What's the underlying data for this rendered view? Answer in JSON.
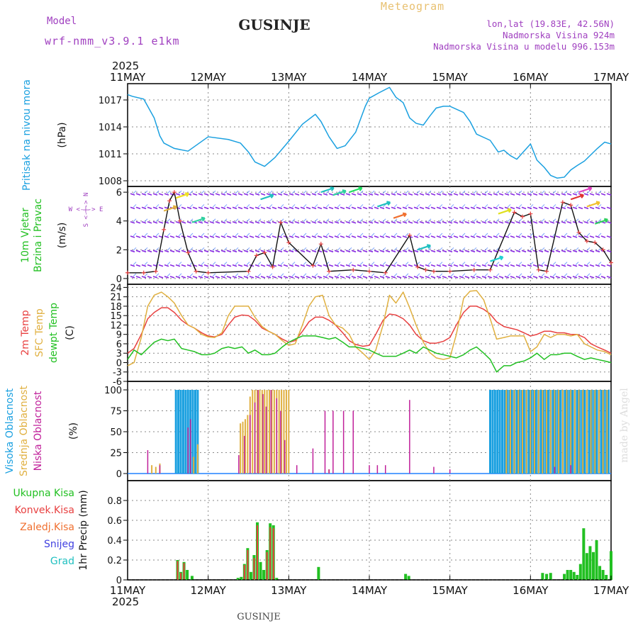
{
  "header": {
    "title": "GUSINJE",
    "model_label": "Model",
    "model_name": "wrf-nmm_v3.9.1 e1km",
    "product": "Meteogram",
    "coords": "lon,lat (19.83E, 42.56N)",
    "elevation": "Nadmorska Visina 924m",
    "model_elevation": "Nadmorska Visina u modelu 996.153m",
    "year_top": "2025",
    "year_bottom": "2025",
    "footer": "GUSINJE",
    "credit": "made by Angel"
  },
  "colors": {
    "pressure": "#1aa0e0",
    "wind_label": "#22c022",
    "temp2m": "#e84040",
    "sfc": "#e0b040",
    "dewpt": "#22c022",
    "high_cloud": "#1aa0e0",
    "mid_cloud": "#e0b040",
    "low_cloud": "#c0209a",
    "total_precip": "#22c022",
    "conv_precip": "#e84040",
    "frozen_precip": "#f07030",
    "snow": "#4040e0",
    "hail": "#20c0c0",
    "title_gold": "#e8c070",
    "purple": "#a040c0"
  },
  "chart_data": [
    {
      "type": "line",
      "panel": "pressure",
      "ylabel_name": "Pritisak na nivou mora",
      "ylabel_unit": "(hPa)",
      "ylim": [
        1008,
        1018.5
      ],
      "yticks": [
        "1008",
        "1011",
        "1014",
        "1017"
      ],
      "x_ticks": [
        "11MAY",
        "12MAY",
        "13MAY",
        "14MAY",
        "15MAY",
        "16MAY",
        "17MAY"
      ],
      "grid": true,
      "x": [
        0,
        0.06,
        0.2,
        0.33,
        0.4,
        0.45,
        0.58,
        0.75,
        1.0,
        1.25,
        1.4,
        1.5,
        1.58,
        1.7,
        1.83,
        2.0,
        2.17,
        2.33,
        2.4,
        2.5,
        2.6,
        2.7,
        2.83,
        2.95,
        3.0,
        3.12,
        3.25,
        3.33,
        3.42,
        3.5,
        3.58,
        3.67,
        3.75,
        3.83,
        3.92,
        4.0,
        4.17,
        4.25,
        4.33,
        4.5,
        4.6,
        4.67,
        4.75,
        4.83,
        5.0,
        5.08,
        5.17,
        5.25,
        5.33,
        5.42,
        5.5,
        5.58,
        5.67,
        5.75,
        5.83,
        5.92,
        6.0
      ],
      "values": [
        1017.6,
        1017.4,
        1017.1,
        1015,
        1013,
        1012.2,
        1011.6,
        1011.3,
        1012.9,
        1012.6,
        1012.2,
        1011.2,
        1010.1,
        1009.6,
        1010.6,
        1012.4,
        1014.3,
        1015.4,
        1014.6,
        1012.9,
        1011.6,
        1011.9,
        1013.4,
        1016.3,
        1017.2,
        1017.8,
        1018.4,
        1017.3,
        1016.7,
        1015.0,
        1014.4,
        1014.2,
        1015.2,
        1016.1,
        1016.3,
        1016.3,
        1015.6,
        1014.6,
        1013.2,
        1012.5,
        1011.2,
        1011.4,
        1010.8,
        1010.4,
        1012.1,
        1010.3,
        1009.5,
        1008.6,
        1008.3,
        1008.4,
        1009.2,
        1009.7,
        1010.2,
        1010.9,
        1011.6,
        1012.3,
        1012.1
      ]
    },
    {
      "type": "line",
      "panel": "wind",
      "ylabel_name": [
        "10m Vjetar",
        "Brzina i Pravac"
      ],
      "ylabel_unit": "(m/s)",
      "legend_ew": "W <-|-> E",
      "legend_ns": "S <-|-> N",
      "ylim": [
        -0.4,
        6.4
      ],
      "yticks": [
        "0",
        "2",
        "4",
        "6"
      ],
      "grid": true,
      "x": [
        0,
        0.2,
        0.35,
        0.45,
        0.52,
        0.58,
        0.65,
        0.75,
        0.85,
        1.0,
        1.5,
        1.6,
        1.7,
        1.8,
        1.9,
        2.0,
        2.3,
        2.4,
        2.5,
        2.8,
        3.0,
        3.2,
        3.5,
        3.6,
        3.7,
        3.8,
        4.0,
        4.3,
        4.5,
        4.8,
        4.9,
        5.0,
        5.1,
        5.2,
        5.4,
        5.5,
        5.6,
        5.7,
        5.8,
        5.9,
        6.0
      ],
      "values": [
        0.4,
        0.4,
        0.5,
        3.4,
        5.4,
        6.0,
        4.0,
        1.8,
        0.5,
        0.4,
        0.5,
        1.6,
        1.8,
        0.8,
        3.9,
        2.5,
        0.9,
        2.4,
        0.5,
        0.6,
        0.5,
        0.4,
        3.0,
        0.8,
        0.6,
        0.5,
        0.5,
        0.6,
        0.6,
        4.6,
        4.3,
        4.5,
        0.6,
        0.5,
        5.3,
        5.1,
        3.2,
        2.6,
        2.5,
        2.0,
        1.1
      ]
    },
    {
      "type": "line",
      "panel": "temperature",
      "ylabel_name": [
        "2m Temp",
        "SFC Temp",
        "dewpt Temp"
      ],
      "ylabel_unit": "(C)",
      "ylim": [
        -6,
        25
      ],
      "yticks": [
        "-6",
        "-3",
        "0",
        "3",
        "6",
        "9",
        "12",
        "15",
        "18",
        "21",
        "24"
      ],
      "grid": true,
      "x": [
        0,
        0.08,
        0.17,
        0.25,
        0.33,
        0.42,
        0.5,
        0.58,
        0.67,
        0.75,
        0.83,
        0.92,
        1.0,
        1.08,
        1.17,
        1.25,
        1.33,
        1.42,
        1.5,
        1.58,
        1.67,
        1.75,
        1.83,
        1.92,
        2.0,
        2.08,
        2.17,
        2.25,
        2.33,
        2.42,
        2.5,
        2.58,
        2.67,
        2.75,
        2.83,
        2.92,
        3.0,
        3.08,
        3.17,
        3.25,
        3.33,
        3.42,
        3.5,
        3.58,
        3.67,
        3.75,
        3.83,
        3.92,
        4.0,
        4.08,
        4.17,
        4.25,
        4.33,
        4.42,
        4.5,
        4.58,
        4.67,
        4.75,
        4.83,
        4.92,
        5.0,
        5.08,
        5.17,
        5.25,
        5.33,
        5.42,
        5.5,
        5.58,
        5.67,
        5.75,
        5.83,
        5.92,
        6.0
      ],
      "series": [
        {
          "name": "2m Temp",
          "values": [
            3,
            4.5,
            9,
            14,
            16,
            17.5,
            17.5,
            16,
            13.5,
            12,
            11,
            9.5,
            8.5,
            8.2,
            9,
            12,
            14.5,
            15.2,
            15,
            13.5,
            11,
            10,
            9,
            7.5,
            6.5,
            7,
            10,
            13,
            14.5,
            14.5,
            13.5,
            12,
            9.5,
            7,
            5.8,
            5.2,
            5.5,
            9,
            13.5,
            15.5,
            15.2,
            14,
            12,
            9,
            7,
            6.2,
            6.2,
            6.8,
            8,
            12,
            16,
            18,
            18,
            17,
            15.5,
            13,
            11.5,
            11,
            10.5,
            9.5,
            8.5,
            9,
            10,
            10,
            9.5,
            9.5,
            9,
            9,
            8,
            6,
            5,
            4,
            3
          ]
        },
        {
          "name": "SFC Temp",
          "values": [
            -1,
            0,
            8,
            18,
            21.5,
            22.5,
            21,
            19,
            15,
            12,
            11,
            9,
            8.2,
            8,
            9.5,
            15,
            18,
            18,
            18,
            14.5,
            11.5,
            10,
            9,
            7,
            5.5,
            6,
            12,
            18,
            21,
            21.5,
            15,
            12,
            11,
            9,
            5,
            3,
            1,
            4,
            12,
            21.5,
            19,
            22.5,
            17.5,
            12,
            6.5,
            3.2,
            1.5,
            1,
            1.5,
            9,
            20.5,
            22.8,
            23,
            20,
            14,
            7.5,
            8,
            8.5,
            8.5,
            8.5,
            3.5,
            5,
            9,
            8,
            9,
            9,
            8.5,
            9,
            6,
            5,
            4,
            3.5,
            2.5
          ]
        },
        {
          "name": "dewpt Temp",
          "values": [
            1,
            4,
            2.5,
            4.5,
            6.5,
            7.5,
            7,
            7.5,
            4.5,
            4,
            3.5,
            2.5,
            2.5,
            3,
            4.5,
            5,
            4.5,
            5,
            3,
            4,
            2.5,
            2.5,
            3,
            5,
            6.5,
            7.5,
            8.5,
            8.5,
            8.5,
            8,
            7.5,
            8,
            6.5,
            5,
            5,
            4.5,
            4,
            3,
            2,
            2,
            2,
            3,
            4,
            3,
            5,
            4,
            3,
            2.5,
            2,
            1.5,
            2.5,
            4,
            5,
            3,
            1,
            -3,
            -1,
            -1,
            0,
            0.5,
            1.5,
            3,
            1,
            2.5,
            2.5,
            3,
            3,
            2,
            1,
            1.5,
            1,
            0.5,
            0
          ]
        }
      ]
    },
    {
      "type": "bar",
      "panel": "clouds",
      "ylabel_name": [
        "Visoka Oblacnost",
        "Srednja Oblacnost",
        "Niska Oblacnost"
      ],
      "ylabel_unit": "(%)",
      "ylim": [
        0,
        100
      ],
      "yticks": [
        "0",
        "25",
        "50",
        "75",
        "100"
      ],
      "grid": true,
      "series": [
        {
          "name": "Visoka Oblacnost",
          "x": [
            0.6,
            0.63,
            0.66,
            0.69,
            0.72,
            0.75,
            0.78,
            0.81,
            0.84,
            0.87,
            4.5,
            4.53,
            4.56,
            4.59,
            4.62,
            4.65,
            4.68,
            4.71,
            4.74,
            4.77,
            4.8,
            4.83,
            4.86,
            4.89,
            4.92,
            4.95,
            4.98,
            5.01,
            5.04,
            5.07,
            5.1,
            5.13,
            5.16,
            5.19,
            5.22,
            5.25,
            5.28,
            5.31,
            5.34,
            5.37,
            5.4,
            5.43,
            5.46,
            5.49,
            5.52,
            5.55,
            5.58,
            5.61,
            5.64,
            5.67,
            5.7,
            5.73,
            5.76,
            5.79,
            5.82,
            5.85,
            5.88,
            5.91,
            5.94,
            5.97
          ],
          "values": [
            100,
            100,
            100,
            100,
            100,
            100,
            100,
            100,
            100,
            100,
            100,
            100,
            100,
            100,
            100,
            100,
            100,
            100,
            100,
            100,
            100,
            100,
            100,
            100,
            100,
            100,
            100,
            100,
            100,
            100,
            100,
            100,
            100,
            100,
            100,
            100,
            100,
            100,
            100,
            100,
            100,
            100,
            100,
            100,
            100,
            100,
            100,
            100,
            100,
            100,
            100,
            100,
            100,
            100,
            100,
            100,
            100,
            100,
            100,
            100
          ]
        },
        {
          "name": "Srednja Oblacnost",
          "x": [
            0.3,
            0.35,
            0.4,
            0.82,
            0.87,
            1.4,
            1.43,
            1.46,
            1.49,
            1.52,
            1.55,
            1.58,
            1.61,
            1.64,
            1.67,
            1.7,
            1.73,
            1.76,
            1.79,
            1.82,
            1.85,
            1.88,
            1.91,
            1.94,
            1.97,
            2.0,
            2.5,
            4.7,
            4.75,
            4.8,
            4.85,
            4.9,
            4.95,
            5.0,
            5.05,
            5.1,
            5.15,
            5.2,
            5.25,
            5.3,
            5.35,
            5.4,
            5.45,
            5.5,
            5.55,
            5.6,
            5.65,
            5.7,
            5.75,
            5.8,
            5.85,
            5.9,
            5.95
          ],
          "values": [
            10,
            8,
            12,
            20,
            35,
            60,
            62,
            65,
            70,
            92,
            100,
            100,
            100,
            100,
            100,
            100,
            100,
            100,
            100,
            100,
            100,
            100,
            100,
            100,
            100,
            100,
            5,
            100,
            100,
            100,
            100,
            100,
            100,
            100,
            100,
            100,
            100,
            100,
            100,
            100,
            100,
            100,
            100,
            100,
            100,
            100,
            100,
            100,
            100,
            100,
            100,
            100,
            100
          ]
        },
        {
          "name": "Niska Oblacnost",
          "x": [
            0.25,
            0.4,
            0.75,
            0.78,
            1.38,
            1.45,
            1.52,
            1.58,
            1.62,
            1.68,
            1.72,
            1.78,
            1.85,
            1.9,
            1.95,
            2.1,
            2.3,
            2.45,
            2.5,
            2.55,
            2.68,
            2.8,
            3.0,
            3.1,
            3.2,
            3.5,
            3.8,
            4.0,
            5.3,
            5.5
          ],
          "values": [
            28,
            10,
            55,
            65,
            22,
            45,
            70,
            85,
            100,
            95,
            80,
            100,
            90,
            75,
            40,
            10,
            30,
            75,
            5,
            75,
            75,
            75,
            10,
            10,
            10,
            88,
            8,
            5,
            8,
            10
          ]
        }
      ]
    },
    {
      "type": "bar",
      "panel": "precipitation",
      "ylabel_name": "1hr Precip",
      "ylabel_unit": "(mm)",
      "legend": [
        "Ukupna Kisa",
        "Konvek.Kisa",
        "Zaledj.Kisa",
        "Snijeg",
        "Grad"
      ],
      "ylim": [
        0,
        1
      ],
      "yticks": [
        "0",
        "0.2",
        "0.4",
        "0.6",
        "0.8"
      ],
      "grid": true,
      "series": [
        {
          "name": "Ukupna Kisa",
          "x": [
            0.62,
            0.66,
            0.7,
            0.74,
            0.8,
            1.37,
            1.41,
            1.45,
            1.49,
            1.53,
            1.57,
            1.61,
            1.65,
            1.69,
            1.73,
            1.77,
            1.81,
            1.85,
            2.37,
            3.45,
            3.49,
            5.15,
            5.2,
            5.25,
            5.42,
            5.46,
            5.5,
            5.54,
            5.58,
            5.62,
            5.66,
            5.7,
            5.74,
            5.78,
            5.82,
            5.86,
            5.9,
            5.94,
            6.0
          ],
          "values": [
            0.2,
            0.08,
            0.18,
            0.1,
            0.04,
            0.02,
            0.03,
            0.16,
            0.32,
            0.08,
            0.25,
            0.58,
            0.18,
            0.1,
            0.3,
            0.57,
            0.55,
            0.02,
            0.13,
            0.06,
            0.04,
            0.07,
            0.06,
            0.07,
            0.06,
            0.1,
            0.1,
            0.08,
            0.05,
            0.16,
            0.52,
            0.27,
            0.34,
            0.28,
            0.4,
            0.14,
            0.1,
            0.05,
            0.29
          ]
        },
        {
          "name": "Konvek.Kisa",
          "x": [
            0.62,
            0.66,
            0.7,
            1.45,
            1.49,
            1.57,
            1.61,
            1.73,
            1.77,
            1.81
          ],
          "values": [
            0.19,
            0.07,
            0.17,
            0.15,
            0.3,
            0.22,
            0.55,
            0.28,
            0.53,
            0.52
          ]
        }
      ]
    }
  ]
}
